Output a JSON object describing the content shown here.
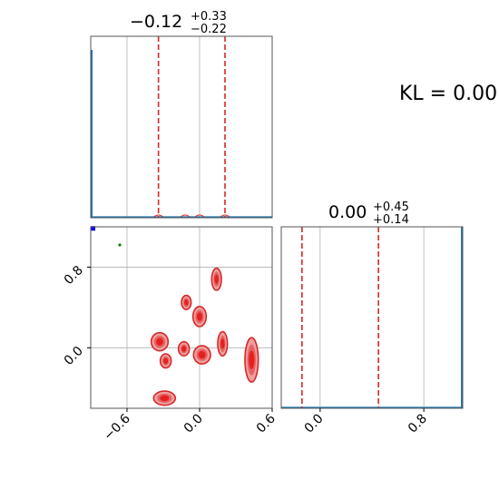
{
  "kl_label": "KL = 0.00",
  "colors": {
    "hist": "#1f77b4",
    "quantile": "#d62728",
    "contour_fill": "#e05050",
    "contour_line": "#d62728",
    "point_true": "#0000ff",
    "point_ref": "#008000",
    "grid": "#b0b0b0",
    "axes": "#555555"
  },
  "chart_data": [
    {
      "type": "histogram",
      "panel": "marginal-param-1",
      "title": {
        "value": "−0.12",
        "plus": "+0.33",
        "minus": "−0.22"
      },
      "xlim": [
        -0.9,
        0.6
      ],
      "quantiles": [
        -0.34,
        0.21
      ],
      "grid_x": [
        -0.6,
        0.0,
        0.6
      ],
      "mass_x": -0.9,
      "bumps": [
        -0.34,
        -0.12,
        0.0,
        0.21
      ]
    },
    {
      "type": "histogram",
      "panel": "marginal-param-2",
      "title": {
        "value": "0.00",
        "plus": "+0.45",
        "minus": "∔0.14"
      },
      "xlim": [
        -0.3,
        1.1
      ],
      "quantiles": [
        -0.14,
        0.45
      ],
      "grid_x": [
        0.0,
        0.8
      ],
      "xticks": [
        0.0,
        0.8
      ],
      "xtick_labels": [
        "0.0",
        "0.8"
      ],
      "mass_x": 1.1
    },
    {
      "type": "contour",
      "panel": "joint-param-1-param-2",
      "xlim": [
        -0.9,
        0.6
      ],
      "ylim": [
        -0.6,
        1.2
      ],
      "xticks": [
        -0.6,
        0.0,
        0.6
      ],
      "xtick_labels": [
        "−0.6",
        "0.0",
        "0.6"
      ],
      "yticks": [
        0.0,
        0.8
      ],
      "ytick_labels": [
        "0.0",
        "0.8"
      ],
      "blobs": [
        {
          "x": 0.14,
          "y": 0.68,
          "rx": 0.04,
          "ry": 0.11
        },
        {
          "x": -0.11,
          "y": 0.45,
          "rx": 0.04,
          "ry": 0.07
        },
        {
          "x": 0.0,
          "y": 0.31,
          "rx": 0.055,
          "ry": 0.1
        },
        {
          "x": -0.33,
          "y": 0.06,
          "rx": 0.07,
          "ry": 0.09
        },
        {
          "x": -0.13,
          "y": -0.01,
          "rx": 0.045,
          "ry": 0.07
        },
        {
          "x": 0.19,
          "y": 0.04,
          "rx": 0.04,
          "ry": 0.12
        },
        {
          "x": 0.02,
          "y": -0.07,
          "rx": 0.07,
          "ry": 0.09
        },
        {
          "x": -0.28,
          "y": -0.13,
          "rx": 0.045,
          "ry": 0.07
        },
        {
          "x": 0.43,
          "y": -0.12,
          "rx": 0.055,
          "ry": 0.22
        },
        {
          "x": -0.29,
          "y": -0.5,
          "rx": 0.09,
          "ry": 0.07
        }
      ],
      "true_point": {
        "x": -0.9,
        "y": 1.18
      },
      "ref_point": {
        "x": -0.66,
        "y": 1.02
      }
    }
  ]
}
